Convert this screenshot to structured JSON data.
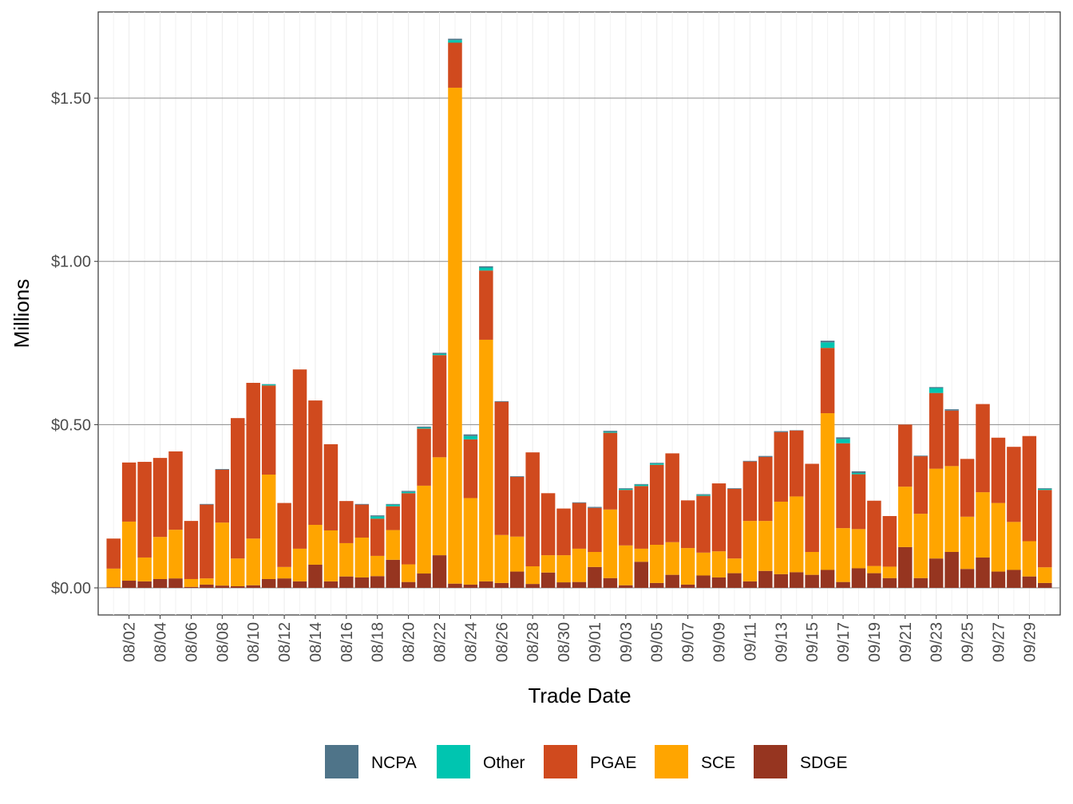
{
  "chart_data": {
    "type": "stacked-bar",
    "x_label": "Trade Date",
    "y_label": "Millions",
    "categories": [
      null,
      "08/02",
      null,
      "08/04",
      null,
      "08/06",
      null,
      "08/08",
      null,
      "08/10",
      null,
      "08/12",
      null,
      "08/14",
      null,
      "08/16",
      null,
      "08/18",
      null,
      "08/20",
      null,
      "08/22",
      null,
      "08/24",
      null,
      "08/26",
      null,
      "08/28",
      null,
      "08/30",
      null,
      "09/01",
      null,
      "09/03",
      null,
      "09/05",
      null,
      "09/07",
      null,
      "09/09",
      null,
      "09/11",
      null,
      "09/13",
      null,
      "09/15",
      null,
      "09/17",
      null,
      "09/19",
      null,
      "09/21",
      null,
      "09/23",
      null,
      "09/25",
      null,
      "09/27",
      null,
      "09/29",
      null
    ],
    "series": [
      {
        "name": "NCPA",
        "color": "#4f7489",
        "values": [
          0,
          0,
          0,
          0,
          0,
          0,
          0.002,
          0.002,
          0,
          0,
          0.001,
          0,
          0,
          0,
          0,
          0,
          0.002,
          0.003,
          0.002,
          0.003,
          0.003,
          0.003,
          0.004,
          0.005,
          0.004,
          0.002,
          0.002,
          0,
          0,
          0,
          0.002,
          0.003,
          0.003,
          0.002,
          0.002,
          0.002,
          0,
          0,
          0.002,
          0,
          0.002,
          0.002,
          0.003,
          0.003,
          0.001,
          0,
          0.005,
          0.005,
          0.005,
          0,
          0,
          0,
          0.002,
          0.003,
          0.004,
          0,
          0,
          0,
          0,
          0,
          0.002
        ]
      },
      {
        "name": "Other",
        "color": "#00c5b0",
        "values": [
          0,
          0,
          0,
          0,
          0,
          0,
          0,
          0,
          0,
          0,
          0.003,
          0,
          0,
          0,
          0,
          0,
          0,
          0.007,
          0.005,
          0.004,
          0.003,
          0.004,
          0.008,
          0.01,
          0.009,
          0,
          0,
          0,
          0,
          0,
          0,
          0,
          0.003,
          0.003,
          0.004,
          0.004,
          0,
          0,
          0.003,
          0,
          0,
          0,
          0,
          0,
          0,
          0,
          0.017,
          0.013,
          0.004,
          0,
          0,
          0,
          0,
          0.015,
          0,
          0,
          0,
          0,
          0,
          0,
          0.003
        ]
      },
      {
        "name": "PGAE",
        "color": "#d04a1e",
        "values": [
          0.092,
          0.181,
          0.293,
          0.242,
          0.24,
          0.178,
          0.226,
          0.162,
          0.43,
          0.477,
          0.273,
          0.196,
          0.549,
          0.381,
          0.264,
          0.129,
          0.101,
          0.114,
          0.073,
          0.218,
          0.175,
          0.313,
          0.138,
          0.18,
          0.212,
          0.408,
          0.183,
          0.349,
          0.19,
          0.143,
          0.14,
          0.135,
          0.235,
          0.17,
          0.192,
          0.245,
          0.272,
          0.146,
          0.174,
          0.208,
          0.213,
          0.182,
          0.196,
          0.213,
          0.202,
          0.27,
          0.2,
          0.26,
          0.168,
          0.2,
          0.155,
          0.19,
          0.176,
          0.232,
          0.17,
          0.177,
          0.27,
          0.2,
          0.23,
          0.322,
          0.237
        ]
      },
      {
        "name": "SCE",
        "color": "#ffa500",
        "values": [
          0.057,
          0.181,
          0.073,
          0.129,
          0.149,
          0.024,
          0.019,
          0.193,
          0.085,
          0.143,
          0.32,
          0.035,
          0.1,
          0.122,
          0.156,
          0.102,
          0.122,
          0.062,
          0.091,
          0.054,
          0.269,
          0.3,
          1.519,
          0.265,
          0.74,
          0.147,
          0.107,
          0.054,
          0.053,
          0.083,
          0.102,
          0.046,
          0.21,
          0.122,
          0.04,
          0.117,
          0.1,
          0.112,
          0.07,
          0.08,
          0.045,
          0.185,
          0.153,
          0.222,
          0.232,
          0.07,
          0.48,
          0.165,
          0.12,
          0.022,
          0.035,
          0.185,
          0.197,
          0.275,
          0.263,
          0.16,
          0.2,
          0.21,
          0.147,
          0.108,
          0.048
        ]
      },
      {
        "name": "SDGE",
        "color": "#963520",
        "values": [
          0.002,
          0.022,
          0.02,
          0.027,
          0.029,
          0.003,
          0.01,
          0.007,
          0.005,
          0.008,
          0.027,
          0.029,
          0.02,
          0.071,
          0.02,
          0.035,
          0.032,
          0.036,
          0.086,
          0.018,
          0.044,
          0.1,
          0.013,
          0.01,
          0.02,
          0.015,
          0.05,
          0.012,
          0.047,
          0.017,
          0.018,
          0.064,
          0.03,
          0.008,
          0.08,
          0.015,
          0.04,
          0.01,
          0.038,
          0.032,
          0.045,
          0.02,
          0.052,
          0.042,
          0.048,
          0.04,
          0.055,
          0.018,
          0.06,
          0.045,
          0.03,
          0.125,
          0.03,
          0.09,
          0.11,
          0.058,
          0.093,
          0.05,
          0.055,
          0.035,
          0.015
        ]
      }
    ],
    "ylim": [
      -0.083,
      1.764
    ],
    "yticks": [
      {
        "value": 0,
        "label": "$0.00"
      },
      {
        "value": 0.5,
        "label": "$0.50"
      },
      {
        "value": 1,
        "label": "$1.00"
      },
      {
        "value": 1.5,
        "label": "$1.50"
      }
    ],
    "grid": true
  }
}
